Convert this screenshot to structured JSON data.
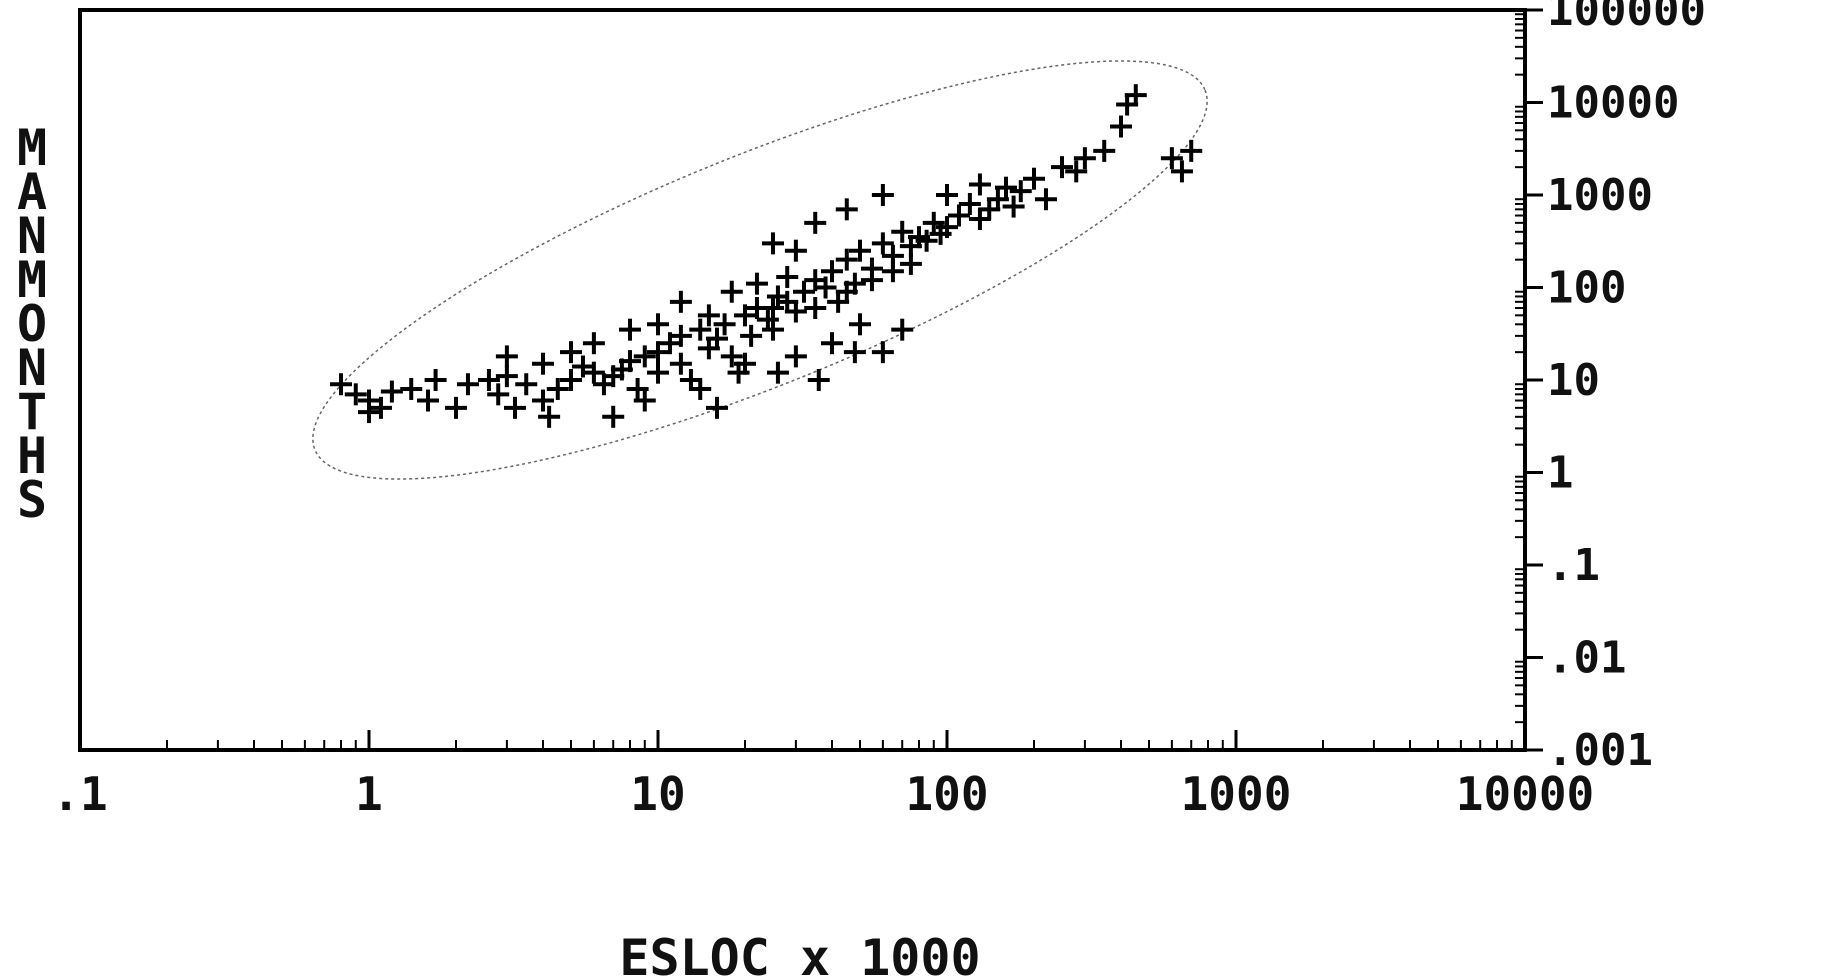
{
  "chart_data": {
    "type": "scatter",
    "xlabel": "ESLOC x 1000",
    "ylabel": "MANMONTHS",
    "x_scale": "log",
    "y_scale": "log",
    "xlim": [
      0.1,
      10000
    ],
    "ylim": [
      0.001,
      100000
    ],
    "x_tick_labels": [
      ".1",
      "1",
      "10",
      "100",
      "1000",
      "10000"
    ],
    "y_tick_labels": [
      "100000",
      "10000",
      "1000",
      "100",
      "10",
      "1",
      ".1",
      ".01",
      ".001"
    ],
    "marker": "plus",
    "grid": false,
    "confidence_ellipse": true,
    "points": [
      [
        0.9,
        7
      ],
      [
        1,
        6
      ],
      [
        1.1,
        5
      ],
      [
        1,
        4.5
      ],
      [
        1.2,
        7.5
      ],
      [
        0.8,
        9
      ],
      [
        1.4,
        8
      ],
      [
        1.6,
        6
      ],
      [
        2,
        5
      ],
      [
        1.7,
        10
      ],
      [
        2.2,
        9
      ],
      [
        2.6,
        10
      ],
      [
        3,
        11
      ],
      [
        3.5,
        9
      ],
      [
        2.8,
        7
      ],
      [
        3.2,
        5
      ],
      [
        4,
        6
      ],
      [
        4.5,
        8
      ],
      [
        4.2,
        4
      ],
      [
        5,
        10
      ],
      [
        5.5,
        14
      ],
      [
        6,
        12
      ],
      [
        6.5,
        9
      ],
      [
        7,
        11
      ],
      [
        7.5,
        13
      ],
      [
        8,
        16
      ],
      [
        8.5,
        8
      ],
      [
        9,
        18
      ],
      [
        10,
        20
      ],
      [
        10,
        12
      ],
      [
        11,
        25
      ],
      [
        12,
        30
      ],
      [
        12,
        15
      ],
      [
        13,
        10
      ],
      [
        14,
        35
      ],
      [
        15,
        22
      ],
      [
        16,
        28
      ],
      [
        17,
        40
      ],
      [
        18,
        18
      ],
      [
        19,
        12
      ],
      [
        20,
        50
      ],
      [
        21,
        30
      ],
      [
        22,
        60
      ],
      [
        24,
        45
      ],
      [
        25,
        35
      ],
      [
        26,
        80
      ],
      [
        28,
        70
      ],
      [
        30,
        55
      ],
      [
        32,
        90
      ],
      [
        35,
        120
      ],
      [
        38,
        100
      ],
      [
        40,
        150
      ],
      [
        42,
        70
      ],
      [
        45,
        200
      ],
      [
        48,
        110
      ],
      [
        50,
        250
      ],
      [
        55,
        160
      ],
      [
        60,
        300
      ],
      [
        65,
        220
      ],
      [
        70,
        400
      ],
      [
        75,
        180
      ],
      [
        80,
        350
      ],
      [
        90,
        500
      ],
      [
        100,
        450
      ],
      [
        110,
        600
      ],
      [
        120,
        800
      ],
      [
        130,
        550
      ],
      [
        140,
        700
      ],
      [
        150,
        900
      ],
      [
        160,
        1200
      ],
      [
        170,
        750
      ],
      [
        180,
        1100
      ],
      [
        200,
        1500
      ],
      [
        220,
        900
      ],
      [
        250,
        2000
      ],
      [
        280,
        1800
      ],
      [
        300,
        2500
      ],
      [
        350,
        3000
      ],
      [
        400,
        5500
      ],
      [
        420,
        9500
      ],
      [
        450,
        12000
      ],
      [
        600,
        2500
      ],
      [
        700,
        3000
      ],
      [
        650,
        1800
      ],
      [
        40,
        25
      ],
      [
        30,
        18
      ],
      [
        20,
        15
      ],
      [
        50,
        40
      ],
      [
        60,
        20
      ],
      [
        25,
        60
      ],
      [
        15,
        50
      ],
      [
        10,
        40
      ],
      [
        8,
        35
      ],
      [
        6,
        25
      ],
      [
        12,
        70
      ],
      [
        18,
        90
      ],
      [
        22,
        110
      ],
      [
        28,
        130
      ],
      [
        35,
        60
      ],
      [
        45,
        90
      ],
      [
        55,
        120
      ],
      [
        65,
        150
      ],
      [
        75,
        280
      ],
      [
        85,
        320
      ],
      [
        95,
        380
      ],
      [
        5,
        20
      ],
      [
        4,
        15
      ],
      [
        3,
        18
      ],
      [
        9,
        6
      ],
      [
        14,
        8
      ],
      [
        26,
        12
      ],
      [
        36,
        10
      ],
      [
        48,
        20
      ],
      [
        70,
        35
      ],
      [
        16,
        5
      ],
      [
        7,
        4
      ],
      [
        100,
        1000
      ],
      [
        130,
        1300
      ],
      [
        60,
        1000
      ],
      [
        45,
        700
      ],
      [
        35,
        500
      ],
      [
        25,
        300
      ],
      [
        30,
        250
      ]
    ]
  }
}
